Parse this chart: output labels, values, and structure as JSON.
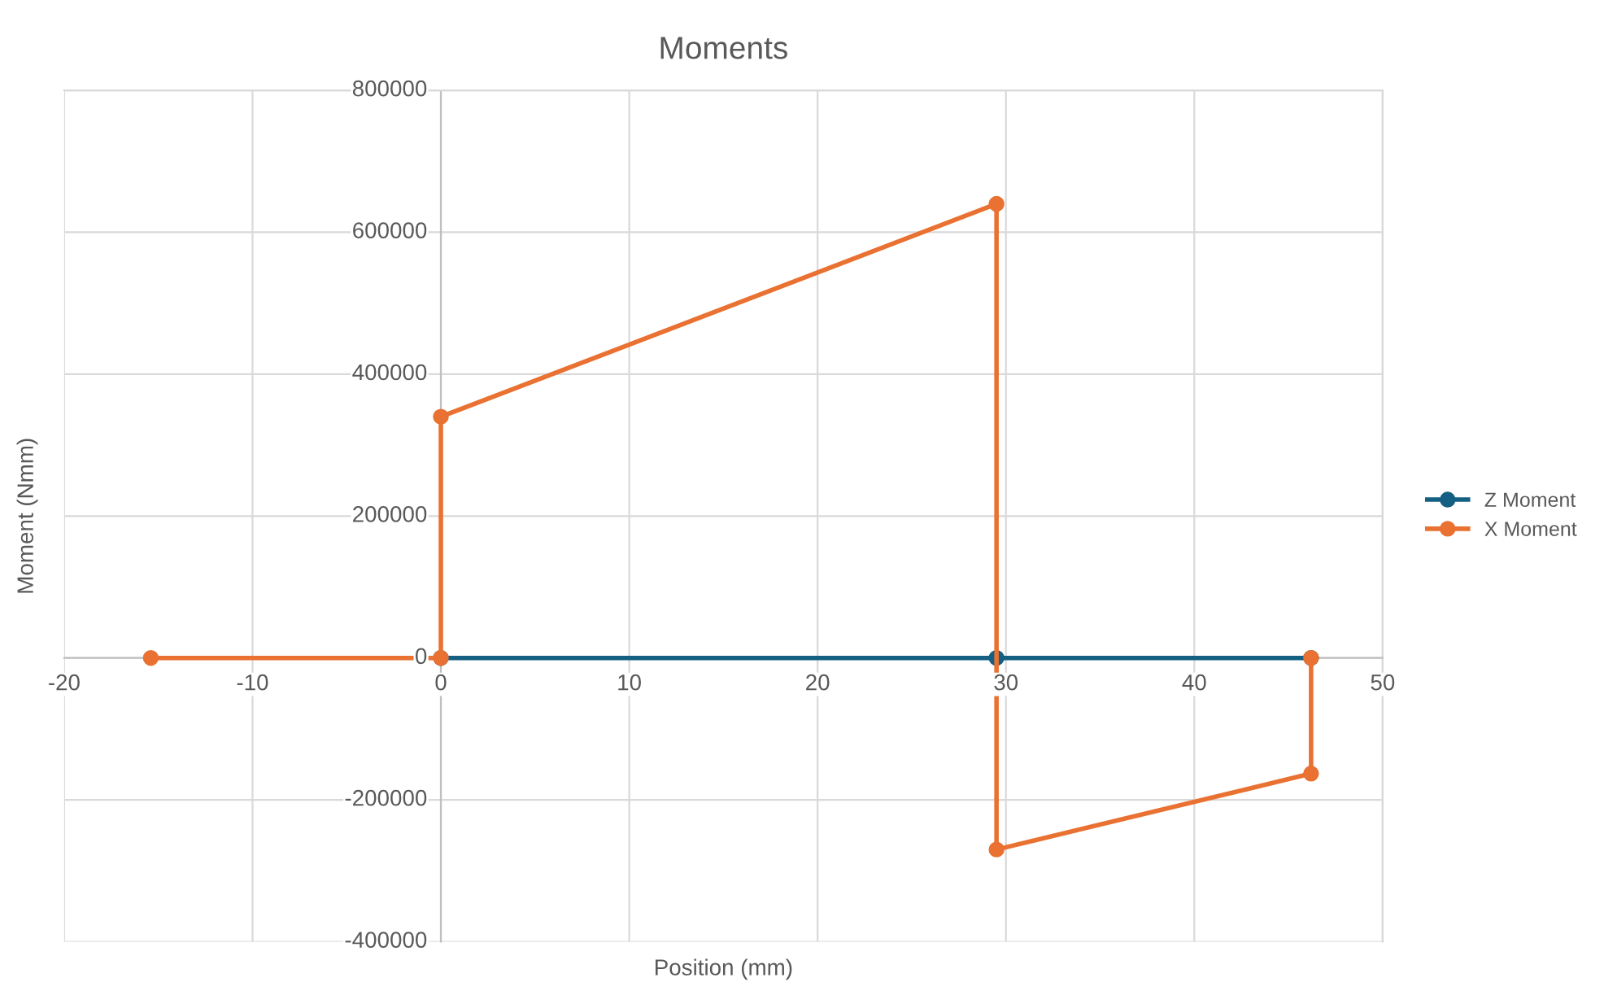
{
  "chart_data": {
    "type": "line",
    "title": "Moments",
    "xlabel": "Position (mm)",
    "ylabel": "Moment (Nmm)",
    "series": [
      {
        "name": "Z Moment",
        "color": "#156082",
        "x": [
          0,
          29.5,
          46.2
        ],
        "values": [
          0,
          0,
          0
        ]
      },
      {
        "name": "X Moment",
        "color": "#e97132",
        "x": [
          -15.4,
          0,
          0,
          29.5,
          29.5,
          46.2,
          46.2
        ],
        "values": [
          0,
          0,
          340000,
          640000,
          -270000,
          -163000,
          0
        ]
      }
    ],
    "xlim": [
      -20,
      50
    ],
    "xticks": [
      -20,
      -10,
      0,
      10,
      20,
      30,
      40,
      50
    ],
    "ylim": [
      -400000,
      800000
    ],
    "yticks": [
      -400000,
      -200000,
      0,
      200000,
      400000,
      600000,
      800000
    ],
    "grid": true,
    "legend": "right",
    "marker": "circle",
    "line_style": "solid"
  }
}
